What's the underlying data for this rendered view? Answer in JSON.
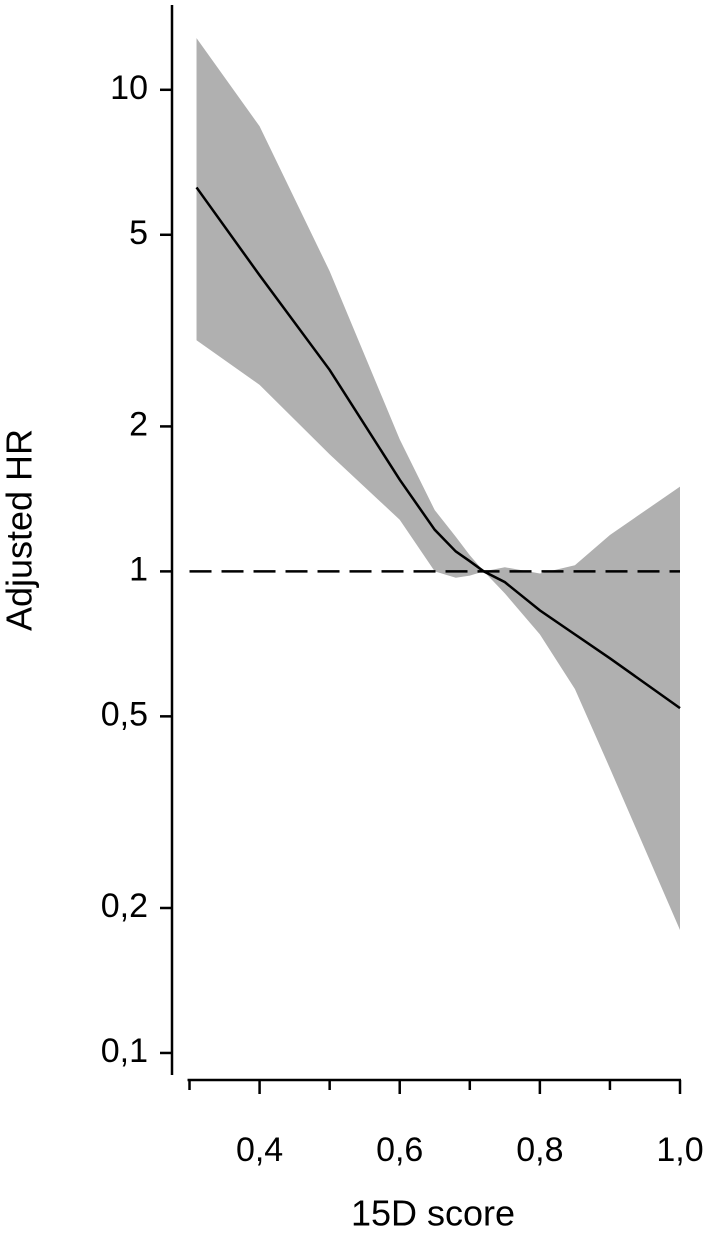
{
  "chart_data": {
    "type": "line",
    "x_label": "15D score",
    "y_label": "Adjusted HR",
    "x": [
      0.31,
      0.4,
      0.5,
      0.6,
      0.65,
      0.68,
      0.7,
      0.72,
      0.75,
      0.8,
      0.85,
      0.9,
      1.0
    ],
    "line": {
      "color": "#000000",
      "values": [
        6.27,
        4.12,
        2.62,
        1.55,
        1.22,
        1.1,
        1.05,
        1.0,
        0.95,
        0.83,
        0.74,
        0.66,
        0.52
      ]
    },
    "band": {
      "color": "#b0b0b0",
      "upper": [
        12.8,
        8.4,
        4.2,
        1.88,
        1.34,
        1.18,
        1.08,
        1.0,
        1.02,
        0.99,
        1.03,
        1.19,
        1.5
      ],
      "lower": [
        3.02,
        2.44,
        1.75,
        1.28,
        1.0,
        0.97,
        0.98,
        1.0,
        0.9,
        0.74,
        0.57,
        0.39,
        0.18
      ]
    },
    "reference_line": 1,
    "ylog": true,
    "xlim": [
      0.275,
      1.0
    ],
    "ylim": [
      0.09,
      15
    ],
    "xticks": [
      {
        "value": 0.4,
        "label": "0,4"
      },
      {
        "value": 0.6,
        "label": "0,6"
      },
      {
        "value": 0.8,
        "label": "0,8"
      },
      {
        "value": 1.0,
        "label": "1,0"
      }
    ],
    "xminor_ticks": [
      0.3,
      0.5,
      0.7,
      0.9
    ],
    "yticks": [
      10,
      5,
      2,
      1,
      {
        "value": 0.5,
        "label": "0,5"
      },
      {
        "value": 0.2,
        "label": "0,2"
      },
      {
        "value": 0.1,
        "label": "0,1"
      }
    ]
  }
}
